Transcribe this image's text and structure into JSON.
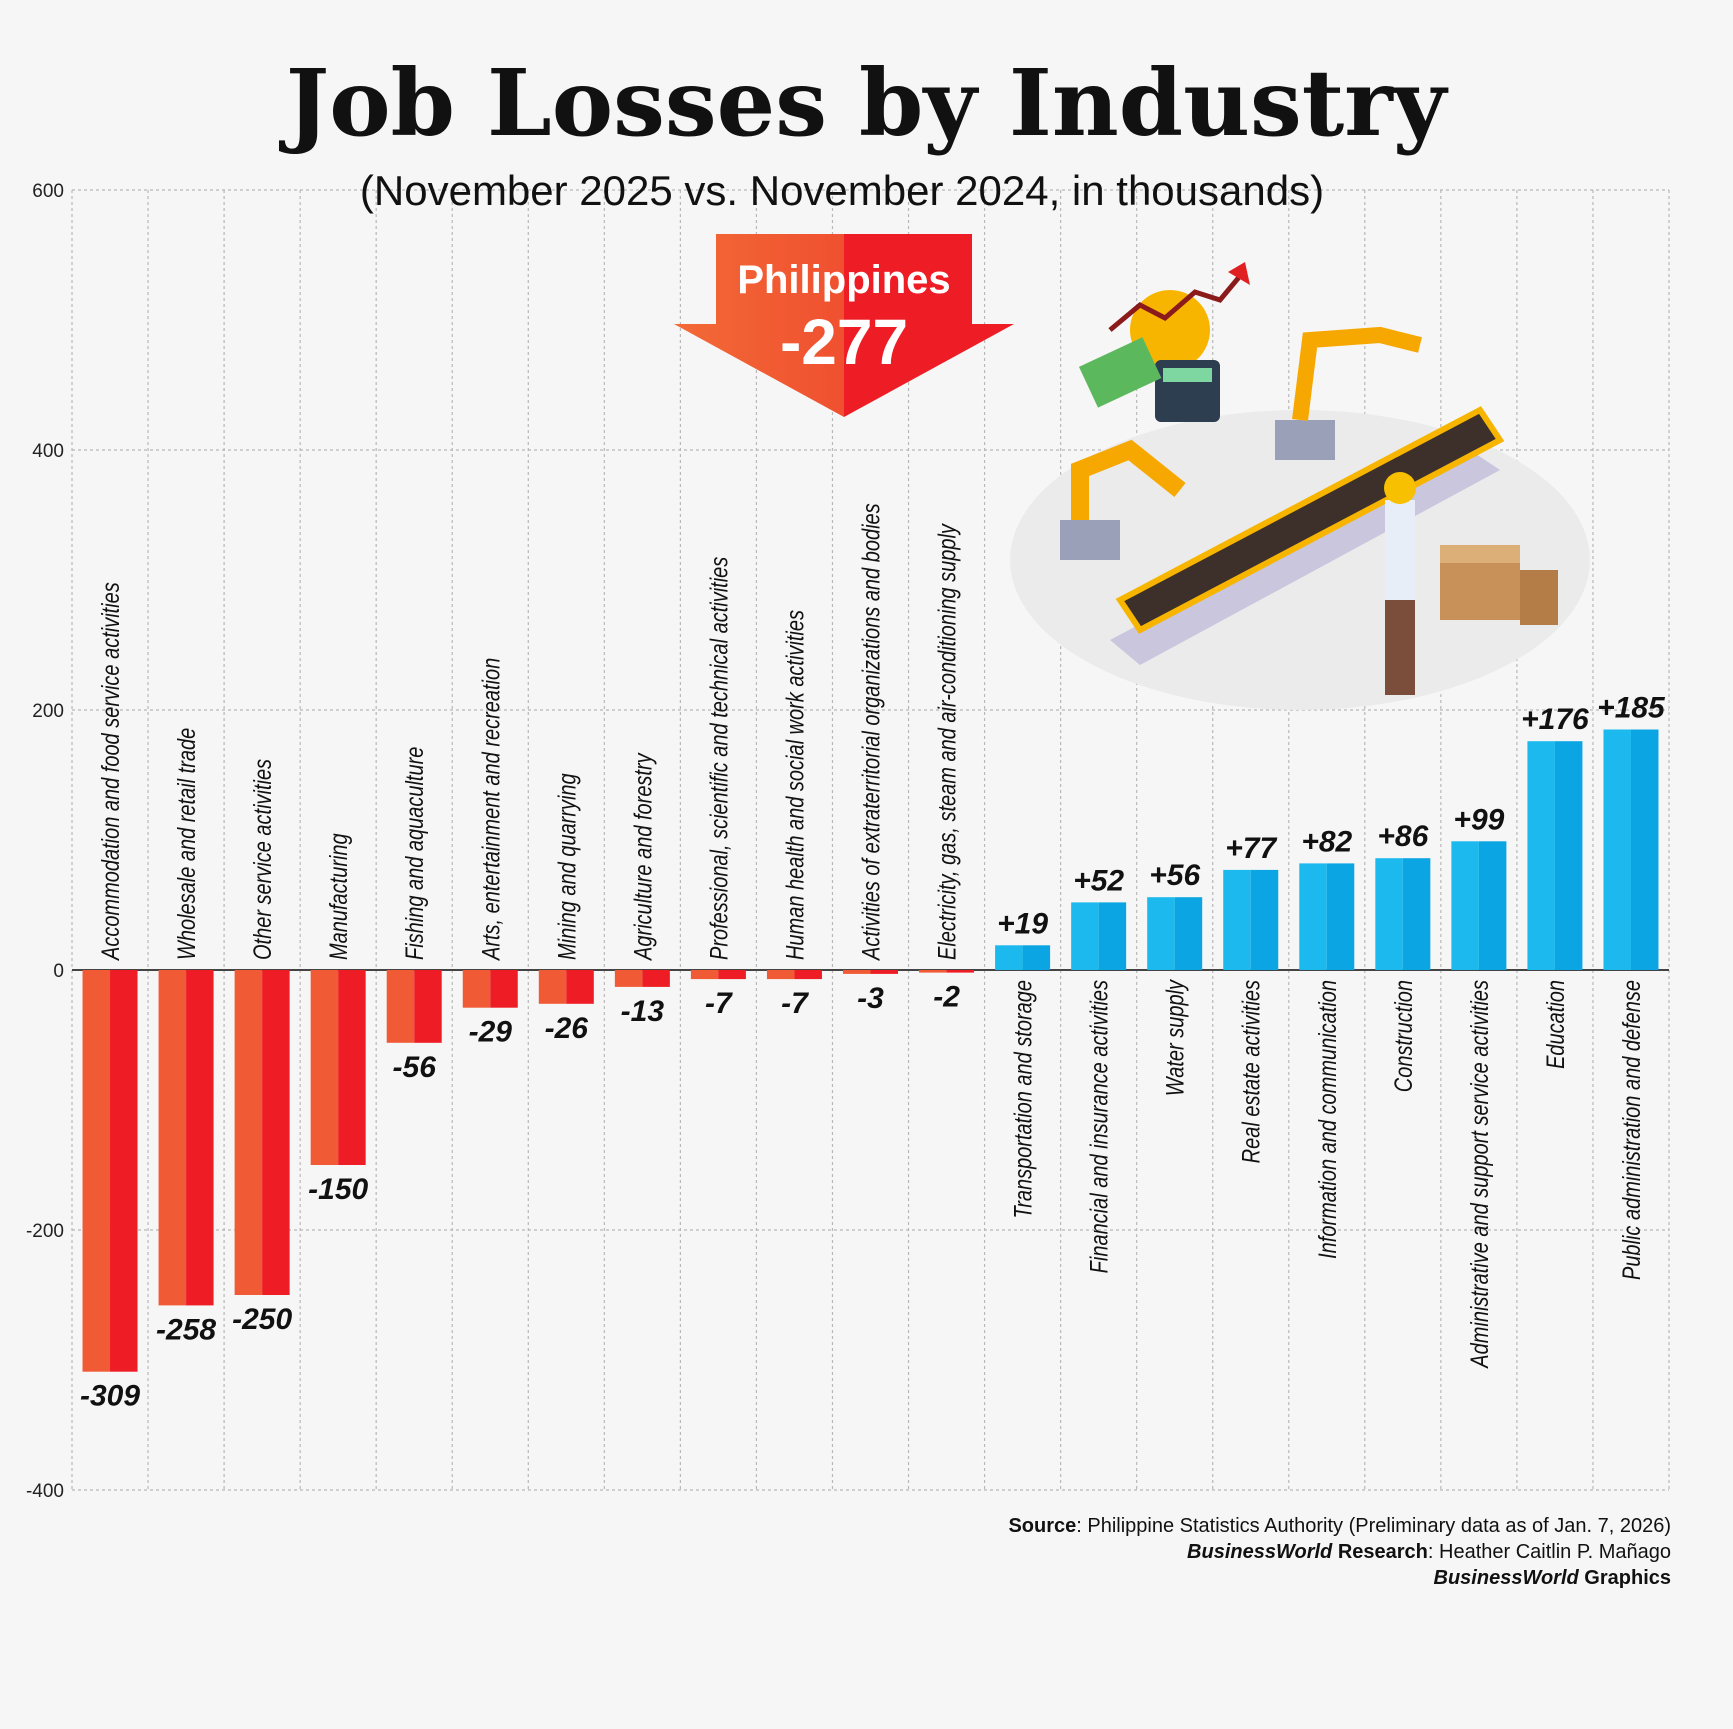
{
  "chart_data": {
    "type": "bar",
    "title": "Job Losses by Industry",
    "subtitle": "(November 2025 vs. November 2024, in thousands)",
    "ylim": [
      -400,
      600
    ],
    "yticks": [
      600,
      400,
      200,
      0,
      -200,
      -400
    ],
    "grid": true,
    "categories": [
      "Accommodation and food service activities",
      "Wholesale and retail trade",
      "Other service activities",
      "Manufacturing",
      "Fishing and aquaculture",
      "Arts, entertainment and recreation",
      "Mining and quarrying",
      "Agriculture and forestry",
      "Professional, scientific and technical activities",
      "Human health and social work activities",
      "Activities of extraterritorial organizations and bodies",
      "Electricity, gas, steam and air-conditioning supply",
      "Transportation and storage",
      "Financial and insurance activities",
      "Water supply",
      "Real estate activities",
      "Information and communication",
      "Construction",
      "Administrative and support service activities",
      "Education",
      "Public administration and defense"
    ],
    "values": [
      -309,
      -258,
      -250,
      -150,
      -56,
      -29,
      -26,
      -13,
      -7,
      -7,
      -3,
      -2,
      19,
      52,
      56,
      77,
      82,
      86,
      99,
      176,
      185
    ],
    "value_labels": [
      "-309",
      "-258",
      "-250",
      "-150",
      "-56",
      "-29",
      "-26",
      "-13",
      "-7",
      "-7",
      "-3",
      "-2",
      "+19",
      "+52",
      "+56",
      "+77",
      "+82",
      "+86",
      "+99",
      "+176",
      "+185"
    ],
    "colors": {
      "negative": "#f05a35",
      "negative_dark": "#ee1c25",
      "positive": "#1cb9ef",
      "positive_dark": "#0aa5e2"
    },
    "annotation": {
      "label": "Philippines",
      "value": "-277"
    }
  },
  "footer": {
    "source_label": "Source",
    "source_text": ": Philippine Statistics Authority (Preliminary data as of Jan. 7, 2026)",
    "research_brand": "BusinessWorld",
    "research_label": " Research",
    "research_text": ": Heather Caitlin P. Mañago",
    "graphics_brand": "BusinessWorld",
    "graphics_label": " Graphics"
  }
}
